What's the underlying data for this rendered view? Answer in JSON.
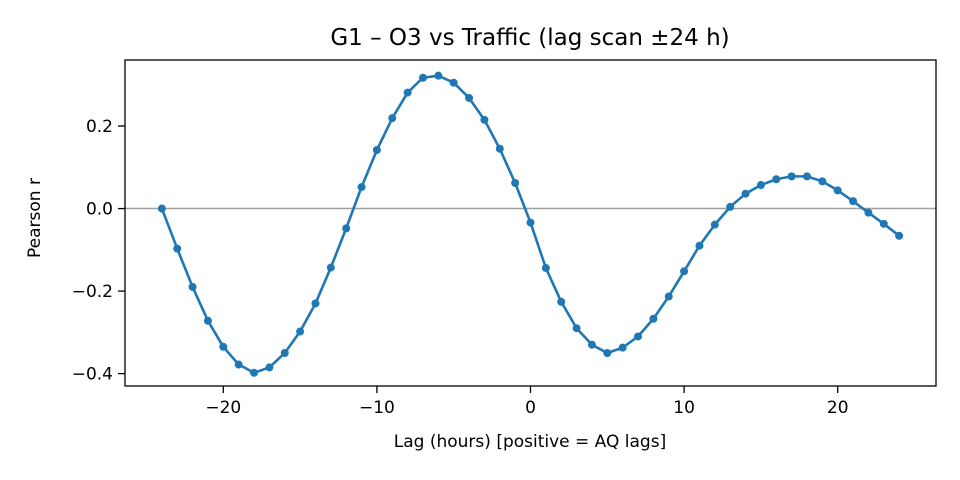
{
  "chart_data": {
    "type": "line",
    "title": "G1 – O3 vs Traffic (lag scan ±24 h)",
    "xlabel": "Lag (hours)  [positive = AQ lags]",
    "ylabel": "Pearson r",
    "xlim": [
      -26.4,
      26.4
    ],
    "ylim": [
      -0.43,
      0.36
    ],
    "xticks": [
      -20,
      -10,
      0,
      10,
      20
    ],
    "xtick_labels": [
      "−20",
      "−10",
      "0",
      "10",
      "20"
    ],
    "yticks": [
      -0.4,
      -0.2,
      0.0,
      0.2
    ],
    "ytick_labels": [
      "−0.4",
      "−0.2",
      "0.0",
      "0.2"
    ],
    "grid": false,
    "reference_line": {
      "y": 0,
      "color": "#a0a0a0"
    },
    "series": [
      {
        "color": "#1f77b4",
        "marker": "circle",
        "x": [
          -24,
          -23,
          -22,
          -21,
          -20,
          -19,
          -18,
          -17,
          -16,
          -15,
          -14,
          -13,
          -12,
          -11,
          -10,
          -9,
          -8,
          -7,
          -6,
          -5,
          -4,
          -3,
          -2,
          -1,
          0,
          1,
          2,
          3,
          4,
          5,
          6,
          7,
          8,
          9,
          10,
          11,
          12,
          13,
          14,
          15,
          16,
          17,
          18,
          19,
          20,
          21,
          22,
          23,
          24
        ],
        "y": [
          0.0,
          -0.097,
          -0.19,
          -0.272,
          -0.335,
          -0.378,
          -0.398,
          -0.385,
          -0.35,
          -0.298,
          -0.23,
          -0.143,
          -0.048,
          0.052,
          0.142,
          0.219,
          0.281,
          0.317,
          0.322,
          0.305,
          0.268,
          0.215,
          0.145,
          0.062,
          -0.034,
          -0.144,
          -0.226,
          -0.29,
          -0.33,
          -0.35,
          -0.337,
          -0.31,
          -0.267,
          -0.213,
          -0.152,
          -0.09,
          -0.039,
          0.004,
          0.036,
          0.057,
          0.071,
          0.078,
          0.078,
          0.066,
          0.044,
          0.018,
          -0.01,
          -0.037,
          -0.066
        ]
      }
    ]
  }
}
